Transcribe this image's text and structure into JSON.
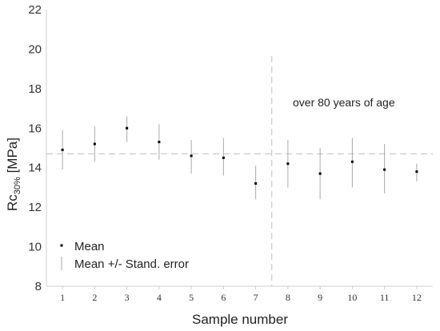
{
  "chart_data": {
    "type": "scatter",
    "xlabel": "Sample number",
    "ylabel_main": "Rc",
    "ylabel_sub": "30%",
    "ylabel_unit": " [MPa]",
    "xlim": [
      0.5,
      12.5
    ],
    "ylim": [
      8,
      22
    ],
    "x_ticks": [
      "1",
      "2",
      "3",
      "4",
      "5",
      "6",
      "7",
      "8",
      "9",
      "10",
      "11",
      "12"
    ],
    "y_ticks": [
      "8",
      "10",
      "12",
      "14",
      "16",
      "18",
      "20",
      "22"
    ],
    "x": [
      1,
      2,
      3,
      4,
      5,
      6,
      7,
      8,
      9,
      10,
      11,
      12
    ],
    "series": [
      {
        "name": "Mean",
        "values": [
          14.9,
          15.2,
          16.0,
          15.3,
          14.6,
          14.5,
          13.2,
          14.2,
          13.7,
          14.3,
          13.9,
          13.8
        ],
        "error_low": [
          13.9,
          14.3,
          15.3,
          14.4,
          13.7,
          13.6,
          12.4,
          13.0,
          12.4,
          13.0,
          12.7,
          13.3
        ],
        "error_high": [
          15.9,
          16.1,
          16.6,
          16.2,
          15.4,
          15.5,
          14.1,
          15.4,
          15.0,
          15.5,
          15.2,
          14.2
        ]
      }
    ],
    "legend": {
      "placement": "bottom-left",
      "entries": [
        "Mean",
        "Mean +/- Stand. error"
      ]
    },
    "reference_line": {
      "y": 14.7,
      "style": "dashed"
    },
    "divider": {
      "x": 7.5,
      "style": "dashed"
    },
    "annotation": "over 80 years of age",
    "grid": false,
    "colors": {
      "marker": "#000000",
      "errorbar": "#aaaaaa",
      "dashed": "#c0c0c0",
      "axis": "#cfcfcf"
    }
  }
}
